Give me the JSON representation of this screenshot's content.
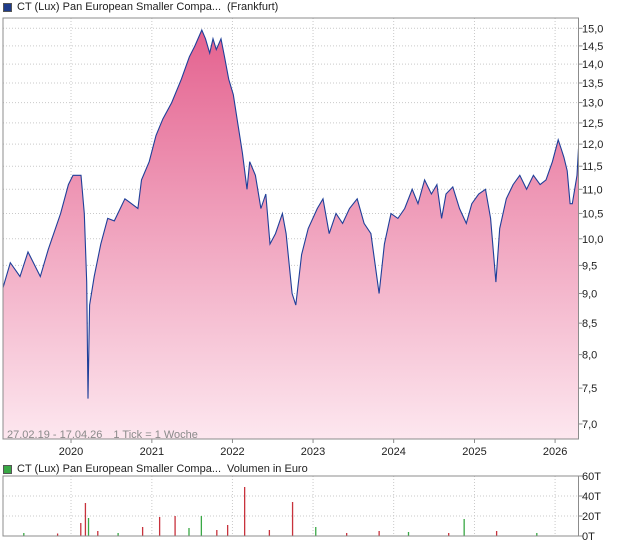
{
  "colors": {
    "price_swatch": "#1e3b8a",
    "volume_swatch": "#39a845",
    "price_line": "#1f3f99",
    "fill_top": "#e4628f",
    "fill_bottom": "#fde7ef",
    "vol_up": "#39a845",
    "vol_down": "#c8323c",
    "grid": "#c9c9c9"
  },
  "price_legend": {
    "name": "CT (Lux) Pan European Smaller Compa...",
    "exchange": "(Frankfurt)"
  },
  "volume_legend": {
    "name": "CT (Lux) Pan European Smaller Compa...",
    "unit": "Volumen in Euro"
  },
  "caption": {
    "range": "27.02.19 - 17.04.26",
    "tick": "1 Tick = 1 Woche"
  },
  "chart_data": [
    {
      "type": "line",
      "y_scale": "log",
      "ylim": [
        6.8,
        15.3
      ],
      "y_ticks": [
        "15,0",
        "14,5",
        "14,0",
        "13,5",
        "13,0",
        "12,5",
        "12,0",
        "11,5",
        "11,0",
        "10,5",
        "10,0",
        "9,5",
        "9,0",
        "8,5",
        "8,0",
        "7,5",
        "7,0"
      ],
      "x_ticks": [
        "2020",
        "2021",
        "2022",
        "2023",
        "2024",
        "2025",
        "2026"
      ],
      "grid": true,
      "series": [
        {
          "points": [
            [
              "2019-02-27",
              9.1
            ],
            [
              "2019-04-01",
              9.55
            ],
            [
              "2019-05-15",
              9.3
            ],
            [
              "2019-06-20",
              9.75
            ],
            [
              "2019-08-15",
              9.3
            ],
            [
              "2019-09-20",
              9.8
            ],
            [
              "2019-11-15",
              10.5
            ],
            [
              "2019-12-20",
              11.1
            ],
            [
              "2020-01-10",
              11.3
            ],
            [
              "2020-02-15",
              11.3
            ],
            [
              "2020-03-01",
              10.5
            ],
            [
              "2020-03-12",
              9.2
            ],
            [
              "2020-03-18",
              7.35
            ],
            [
              "2020-03-25",
              8.8
            ],
            [
              "2020-04-15",
              9.3
            ],
            [
              "2020-05-15",
              9.9
            ],
            [
              "2020-06-15",
              10.4
            ],
            [
              "2020-07-15",
              10.35
            ],
            [
              "2020-09-01",
              10.8
            ],
            [
              "2020-10-30",
              10.6
            ],
            [
              "2020-11-15",
              11.2
            ],
            [
              "2020-12-20",
              11.6
            ],
            [
              "2021-01-20",
              12.2
            ],
            [
              "2021-02-20",
              12.6
            ],
            [
              "2021-04-01",
              13.0
            ],
            [
              "2021-05-15",
              13.6
            ],
            [
              "2021-06-20",
              14.2
            ],
            [
              "2021-07-15",
              14.5
            ],
            [
              "2021-08-15",
              14.95
            ],
            [
              "2021-09-01",
              14.7
            ],
            [
              "2021-09-20",
              14.3
            ],
            [
              "2021-10-05",
              14.7
            ],
            [
              "2021-10-20",
              14.4
            ],
            [
              "2021-11-10",
              14.7
            ],
            [
              "2021-11-26",
              14.2
            ],
            [
              "2021-12-15",
              13.6
            ],
            [
              "2022-01-05",
              13.2
            ],
            [
              "2022-01-25",
              12.5
            ],
            [
              "2022-02-15",
              11.8
            ],
            [
              "2022-03-08",
              11.0
            ],
            [
              "2022-03-20",
              11.6
            ],
            [
              "2022-04-15",
              11.3
            ],
            [
              "2022-05-10",
              10.6
            ],
            [
              "2022-06-01",
              10.9
            ],
            [
              "2022-06-20",
              9.9
            ],
            [
              "2022-07-15",
              10.1
            ],
            [
              "2022-08-15",
              10.5
            ],
            [
              "2022-09-01",
              10.1
            ],
            [
              "2022-09-28",
              9.0
            ],
            [
              "2022-10-15",
              8.8
            ],
            [
              "2022-11-10",
              9.7
            ],
            [
              "2022-12-10",
              10.2
            ],
            [
              "2023-01-20",
              10.6
            ],
            [
              "2023-02-15",
              10.8
            ],
            [
              "2023-03-15",
              10.1
            ],
            [
              "2023-04-15",
              10.5
            ],
            [
              "2023-05-15",
              10.3
            ],
            [
              "2023-06-15",
              10.6
            ],
            [
              "2023-07-20",
              10.8
            ],
            [
              "2023-08-20",
              10.3
            ],
            [
              "2023-09-20",
              10.1
            ],
            [
              "2023-10-27",
              9.0
            ],
            [
              "2023-11-20",
              9.9
            ],
            [
              "2023-12-20",
              10.5
            ],
            [
              "2024-01-20",
              10.4
            ],
            [
              "2024-02-20",
              10.6
            ],
            [
              "2024-03-25",
              11.0
            ],
            [
              "2024-04-20",
              10.7
            ],
            [
              "2024-05-20",
              11.2
            ],
            [
              "2024-06-20",
              10.9
            ],
            [
              "2024-07-15",
              11.1
            ],
            [
              "2024-08-05",
              10.4
            ],
            [
              "2024-08-25",
              10.9
            ],
            [
              "2024-09-25",
              11.05
            ],
            [
              "2024-10-25",
              10.6
            ],
            [
              "2024-11-25",
              10.3
            ],
            [
              "2024-12-20",
              10.7
            ],
            [
              "2025-01-20",
              10.9
            ],
            [
              "2025-02-20",
              11.0
            ],
            [
              "2025-03-15",
              10.4
            ],
            [
              "2025-04-08",
              9.2
            ],
            [
              "2025-04-25",
              10.2
            ],
            [
              "2025-05-25",
              10.8
            ],
            [
              "2025-06-25",
              11.1
            ],
            [
              "2025-07-25",
              11.3
            ],
            [
              "2025-08-25",
              11.0
            ],
            [
              "2025-09-25",
              11.3
            ],
            [
              "2025-10-25",
              11.1
            ],
            [
              "2025-11-21",
              11.2
            ],
            [
              "2025-12-20",
              11.6
            ],
            [
              "2026-01-15",
              12.1
            ],
            [
              "2026-01-28",
              11.9
            ],
            [
              "2026-02-10",
              11.7
            ],
            [
              "2026-02-25",
              11.4
            ],
            [
              "2026-03-10",
              10.7
            ],
            [
              "2026-03-20",
              10.7
            ],
            [
              "2026-04-10",
              11.3
            ],
            [
              "2026-04-17",
              11.9
            ]
          ]
        }
      ]
    },
    {
      "type": "bar",
      "ylim": [
        0,
        60000
      ],
      "y_ticks": [
        "60T",
        "40T",
        "20T",
        "0T"
      ],
      "x_ticks": [
        "2020",
        "2021",
        "2022",
        "2023",
        "2024",
        "2025",
        "2026"
      ],
      "grid": true,
      "series": [
        {
          "points": [
            [
              "2019-06-01",
              3000,
              "up"
            ],
            [
              "2019-11-01",
              2500,
              "down"
            ],
            [
              "2020-02-14",
              13000,
              "down"
            ],
            [
              "2020-03-06",
              33000,
              "down"
            ],
            [
              "2020-03-20",
              18000,
              "up"
            ],
            [
              "2020-05-01",
              5000,
              "down"
            ],
            [
              "2020-08-01",
              3000,
              "up"
            ],
            [
              "2020-11-20",
              9000,
              "down"
            ],
            [
              "2021-02-05",
              19000,
              "down"
            ],
            [
              "2021-04-16",
              20000,
              "down"
            ],
            [
              "2021-06-18",
              8000,
              "up"
            ],
            [
              "2021-08-13",
              20000,
              "up"
            ],
            [
              "2021-10-22",
              6000,
              "down"
            ],
            [
              "2021-12-10",
              11000,
              "down"
            ],
            [
              "2022-02-25",
              49000,
              "down"
            ],
            [
              "2022-06-17",
              6000,
              "down"
            ],
            [
              "2022-09-30",
              34000,
              "down"
            ],
            [
              "2023-01-13",
              9000,
              "up"
            ],
            [
              "2023-06-02",
              3000,
              "down"
            ],
            [
              "2023-10-27",
              5000,
              "down"
            ],
            [
              "2024-03-08",
              4000,
              "up"
            ],
            [
              "2024-09-06",
              3000,
              "down"
            ],
            [
              "2024-11-15",
              17000,
              "up"
            ],
            [
              "2025-04-11",
              5000,
              "down"
            ],
            [
              "2025-10-10",
              3000,
              "up"
            ]
          ]
        }
      ]
    }
  ]
}
